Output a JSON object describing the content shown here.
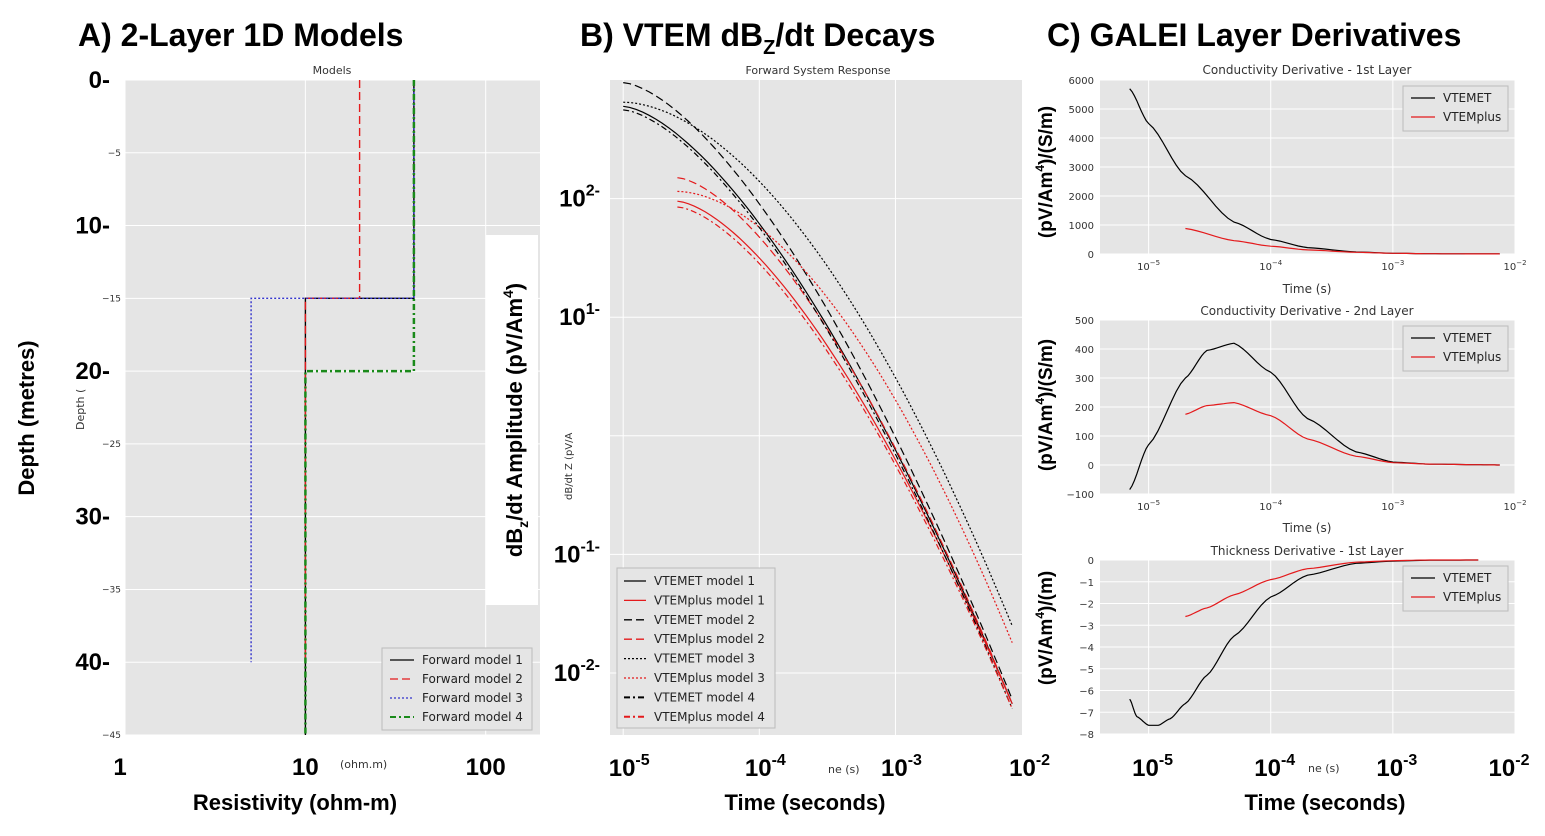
{
  "panels": {
    "a_title": "A) 2-Layer 1D Models",
    "b_title": "B) VTEM dB",
    "b_title_sub": "Z",
    "b_title_rest": "/dt Decays",
    "c_title": "C) GALEI Layer Derivatives"
  },
  "colors": {
    "plot_bg": "#e5e5e5",
    "black": "#000000",
    "red": "#e41a1c",
    "blue": "#3333cc",
    "green": "#1a8a1a"
  },
  "chart_data": [
    {
      "type": "line",
      "id": "models",
      "title": "Models",
      "ylabel_overlay": "Depth (metres)",
      "ylabel_small": "Depth (",
      "xlabel_overlay": "Resistivity (ohm-m)",
      "xlabel_small": "(ohm.m)",
      "xscale": "log",
      "xlim": [
        1,
        200
      ],
      "ylim": [
        -45,
        0
      ],
      "small_yticks": [
        "−5",
        "−15",
        "−25",
        "−35",
        "−45"
      ],
      "overlay_yticks": [
        "0-",
        "10-",
        "20-",
        "30-",
        "40-"
      ],
      "overlay_xticks": [
        "1",
        "10",
        "100"
      ],
      "grid": true,
      "legend": "bottom-right",
      "series": [
        {
          "name": "Forward model 1",
          "color": "black",
          "dash": "solid",
          "x": [
            40,
            40,
            10,
            10
          ],
          "y": [
            0,
            -15,
            -15,
            -45
          ]
        },
        {
          "name": "Forward model 2",
          "color": "red",
          "dash": "dashed",
          "x": [
            20,
            20,
            10,
            10
          ],
          "y": [
            0,
            -15,
            -15,
            -40
          ]
        },
        {
          "name": "Forward model 3",
          "color": "blue",
          "dash": "dotted",
          "x": [
            40,
            40,
            5,
            5
          ],
          "y": [
            0,
            -15,
            -15,
            -40
          ]
        },
        {
          "name": "Forward model 4",
          "color": "green",
          "dash": "dashdot",
          "x": [
            40,
            40,
            10,
            10
          ],
          "y": [
            0,
            -20,
            -20,
            -45
          ]
        }
      ]
    },
    {
      "type": "line",
      "id": "decays",
      "title": "Forward System Response",
      "ylabel_overlay": "dB",
      "ylabel_overlay_sub": "z",
      "ylabel_overlay_rest": "/dt Amplitude (pV/Am",
      "ylabel_overlay_sup": "4",
      "ylabel_overlay_end": ")",
      "ylabel_small": "dB/dt Z (pV/A",
      "xlabel_overlay": "Time (seconds)",
      "xlabel_small": "ne (s)",
      "xscale": "log",
      "yscale": "log",
      "xlim": [
        8e-06,
        0.0085
      ],
      "ylim": [
        0.003,
        1000
      ],
      "overlay_xticks": [
        {
          "base": "10",
          "exp": "-5"
        },
        {
          "base": "10",
          "exp": "-4"
        },
        {
          "base": "10",
          "exp": "-3"
        },
        {
          "base": "10",
          "exp": "-2"
        }
      ],
      "overlay_yticks": [
        {
          "base": "10",
          "exp": "2-"
        },
        {
          "base": "10",
          "exp": "1-"
        },
        {
          "base": "10",
          "exp": "-1-"
        },
        {
          "base": "10",
          "exp": "-2-"
        }
      ],
      "grid": true,
      "legend": "bottom-left",
      "series": [
        {
          "name": "VTEMET model 1",
          "color": "black",
          "dash": "solid",
          "t_start": 1e-05,
          "a_start": 600,
          "a_end": 0.0055,
          "shape": 1.0
        },
        {
          "name": "VTEMplus model 1",
          "color": "red",
          "dash": "solid",
          "t_start": 2.5e-05,
          "a_start": 95,
          "a_end": 0.0055,
          "shape": 1.0
        },
        {
          "name": "VTEMET model 2",
          "color": "black",
          "dash": "dashed",
          "t_start": 1e-05,
          "a_start": 950,
          "a_end": 0.006,
          "shape": 1.0
        },
        {
          "name": "VTEMplus model 2",
          "color": "red",
          "dash": "dashed",
          "t_start": 2.5e-05,
          "a_start": 150,
          "a_end": 0.0055,
          "shape": 1.0
        },
        {
          "name": "VTEMET model 3",
          "color": "black",
          "dash": "dotted",
          "t_start": 1e-05,
          "a_start": 650,
          "a_end": 0.025,
          "shape": 1.6
        },
        {
          "name": "VTEMplus model 3",
          "color": "red",
          "dash": "dotted",
          "t_start": 2.5e-05,
          "a_start": 115,
          "a_end": 0.018,
          "shape": 1.6
        },
        {
          "name": "VTEMET model 4",
          "color": "black",
          "dash": "dashdot",
          "t_start": 1e-05,
          "a_start": 560,
          "a_end": 0.005,
          "shape": 1.0
        },
        {
          "name": "VTEMplus model 4",
          "color": "red",
          "dash": "dashdot",
          "t_start": 2.5e-05,
          "a_start": 85,
          "a_end": 0.005,
          "shape": 1.0
        }
      ]
    },
    {
      "type": "line",
      "id": "deriv1",
      "title": "Conductivity Derivative - 1st Layer",
      "ylabel_overlay": "(pV/Am",
      "ylabel_overlay_sup": "4",
      "ylabel_overlay_end": ")/(S/m)",
      "xlabel_small": "Time (s)",
      "xscale": "log",
      "xlim": [
        4e-06,
        0.01
      ],
      "ylim": [
        0,
        6000
      ],
      "yticks": [
        "0",
        "1000",
        "2000",
        "3000",
        "4000",
        "5000",
        "6000"
      ],
      "xticks": [
        {
          "base": "10",
          "exp": "−5"
        },
        {
          "base": "10",
          "exp": "−4"
        },
        {
          "base": "10",
          "exp": "−3"
        },
        {
          "base": "10",
          "exp": "−2"
        }
      ],
      "grid": true,
      "legend": "top-right",
      "series": [
        {
          "name": "VTEMET",
          "color": "black",
          "t": [
            7e-06,
            1e-05,
            2e-05,
            5e-05,
            0.0001,
            0.0002,
            0.0005,
            0.001,
            0.002,
            0.005,
            0.0075
          ],
          "v": [
            5700,
            4500,
            2700,
            1100,
            500,
            220,
            70,
            25,
            10,
            3,
            2
          ]
        },
        {
          "name": "VTEMplus",
          "color": "red",
          "t": [
            2e-05,
            5e-05,
            0.0001,
            0.0002,
            0.0005,
            0.001,
            0.002,
            0.005,
            0.0075
          ],
          "v": [
            880,
            460,
            270,
            140,
            60,
            25,
            10,
            3,
            2
          ]
        }
      ]
    },
    {
      "type": "line",
      "id": "deriv2",
      "title": "Conductivity Derivative - 2nd Layer",
      "ylabel_overlay": "(pV/Am",
      "ylabel_overlay_sup": "4",
      "ylabel_overlay_end": ")/(S/m)",
      "xlabel_small": "Time (s)",
      "xscale": "log",
      "xlim": [
        4e-06,
        0.01
      ],
      "ylim": [
        -100,
        500
      ],
      "yticks": [
        "−100",
        "0",
        "100",
        "200",
        "300",
        "400",
        "500"
      ],
      "xticks": [
        {
          "base": "10",
          "exp": "−5"
        },
        {
          "base": "10",
          "exp": "−4"
        },
        {
          "base": "10",
          "exp": "−3"
        },
        {
          "base": "10",
          "exp": "−2"
        }
      ],
      "grid": true,
      "legend": "top-right",
      "series": [
        {
          "name": "VTEMET",
          "color": "black",
          "t": [
            7e-06,
            1e-05,
            2e-05,
            3e-05,
            5e-05,
            0.0001,
            0.0002,
            0.0005,
            0.001,
            0.002,
            0.005,
            0.0075
          ],
          "v": [
            -85,
            70,
            300,
            395,
            420,
            320,
            160,
            45,
            10,
            3,
            1,
            0
          ]
        },
        {
          "name": "VTEMplus",
          "color": "red",
          "t": [
            2e-05,
            3e-05,
            5e-05,
            0.0001,
            0.0002,
            0.0005,
            0.001,
            0.002,
            0.005,
            0.0075
          ],
          "v": [
            175,
            205,
            215,
            170,
            90,
            30,
            8,
            3,
            1,
            0
          ]
        }
      ]
    },
    {
      "type": "line",
      "id": "deriv3",
      "title": "Thickness Derivative - 1st Layer",
      "ylabel_overlay": "(pV/Am",
      "ylabel_overlay_sup": "4",
      "ylabel_overlay_end": ")/(m)",
      "xlabel_overlay": "Time (seconds)",
      "xlabel_small": "ne (s)",
      "xscale": "log",
      "xlim": [
        4e-06,
        0.01
      ],
      "ylim": [
        -8,
        0
      ],
      "yticks": [
        "−8",
        "−7",
        "−6",
        "−5",
        "−4",
        "−3",
        "−2",
        "−1",
        "0"
      ],
      "overlay_xticks": [
        {
          "base": "10",
          "exp": "-5"
        },
        {
          "base": "10",
          "exp": "-4"
        },
        {
          "base": "10",
          "exp": "-3"
        },
        {
          "base": "10",
          "exp": "-2"
        }
      ],
      "grid": true,
      "legend": "top-right",
      "series": [
        {
          "name": "VTEMET",
          "color": "black",
          "t": [
            7e-06,
            8e-06,
            1e-05,
            1.2e-05,
            1.5e-05,
            2e-05,
            3e-05,
            5e-05,
            0.0001,
            0.0002,
            0.0005,
            0.001,
            0.002,
            0.005
          ],
          "v": [
            -6.4,
            -7.2,
            -7.6,
            -7.6,
            -7.3,
            -6.6,
            -5.3,
            -3.5,
            -1.7,
            -0.7,
            -0.15,
            -0.05,
            -0.01,
            0
          ]
        },
        {
          "name": "VTEMplus",
          "color": "red",
          "t": [
            2e-05,
            3e-05,
            5e-05,
            0.0001,
            0.0002,
            0.0005,
            0.001,
            0.002,
            0.005
          ],
          "v": [
            -2.6,
            -2.2,
            -1.6,
            -0.9,
            -0.4,
            -0.1,
            -0.03,
            0,
            0
          ]
        }
      ]
    }
  ]
}
